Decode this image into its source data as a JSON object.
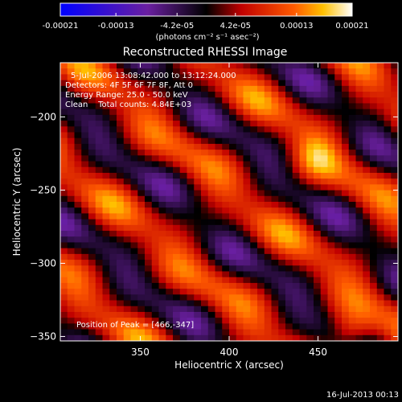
{
  "chart_data": {
    "type": "heatmap",
    "title": "Reconstructed RHESSI Image",
    "colorbar": {
      "tick_labels": [
        "-0.00021",
        "-0.00013",
        "-4.2e-05",
        "4.2e-05",
        "0.00013",
        "0.00021"
      ],
      "ticks": [
        -0.00021,
        -0.00013,
        -4.2e-05,
        4.2e-05,
        0.00013,
        0.00021
      ],
      "range": [
        -0.00021,
        0.00021
      ],
      "unit_label": "(photons cm⁻² s⁻¹ asec⁻²)",
      "colors": [
        "#0000ff",
        "#6a1fa0",
        "#000000",
        "#c00000",
        "#ff5a00",
        "#ffc000",
        "#ffffff"
      ]
    },
    "xlabel": "Heliocentric X (arcsec)",
    "ylabel": "Heliocentric Y (arcsec)",
    "xlim": [
      305,
      495
    ],
    "ylim": [
      -353,
      -163
    ],
    "xticks": [
      350,
      400,
      450
    ],
    "yticks": [
      -200,
      -250,
      -300,
      -350
    ],
    "annotations": [
      "5-Jul-2006 13:08:42.000 to 13:12:24.000",
      "Detectors: 4F 5F 6F 7F 8F, Att 0",
      "Energy Range: 25.0 - 50.0 keV",
      "Clean    Total counts: 4.84E+03"
    ],
    "peak_label": "Position of Peak = [466,-347]",
    "peak": [
      466,
      -347
    ],
    "grid": false
  },
  "footer": {
    "date": "16-Jul-2013 00:13"
  }
}
